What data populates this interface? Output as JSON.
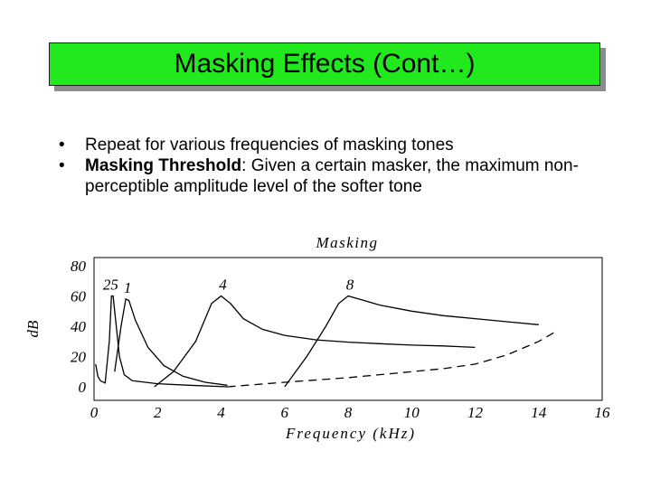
{
  "slide": {
    "title": "Masking Effects (Cont…)",
    "bullet1_dot": "•",
    "bullet1_text": "Repeat for various frequencies of masking tones",
    "bullet2_dot": "•",
    "bullet2_bold": "Masking Threshold",
    "bullet2_text": ": Given a certain masker, the maximum non-perceptible amplitude level of the softer tone"
  },
  "colors": {
    "title_bg": "#22e81e",
    "line": "#000000"
  },
  "chart_data": {
    "type": "line",
    "title": "Masking",
    "xlabel": "Frequency (kHz)",
    "ylabel": "dB",
    "xlim": [
      0,
      16
    ],
    "ylim": [
      0,
      80
    ],
    "xticks": [
      "0",
      "2",
      "4",
      "6",
      "8",
      "10",
      "12",
      "14",
      "16"
    ],
    "yticks": [
      "0",
      "20",
      "40",
      "60",
      "80"
    ],
    "grid": false,
    "series": [
      {
        "name": "25",
        "style": "solid",
        "points": [
          [
            0.05,
            15
          ],
          [
            0.12,
            7
          ],
          [
            0.2,
            4
          ],
          [
            0.35,
            2.5
          ],
          [
            0.48,
            30
          ],
          [
            0.55,
            60
          ],
          [
            0.6,
            60
          ],
          [
            0.7,
            40
          ],
          [
            0.8,
            20
          ],
          [
            0.95,
            8
          ],
          [
            1.2,
            4
          ],
          [
            2,
            2
          ],
          [
            3,
            1
          ],
          [
            4.2,
            0
          ]
        ]
      },
      {
        "name": "1",
        "style": "solid",
        "points": [
          [
            0.65,
            10
          ],
          [
            0.85,
            40
          ],
          [
            1.0,
            58
          ],
          [
            1.1,
            57
          ],
          [
            1.3,
            44
          ],
          [
            1.7,
            26
          ],
          [
            2.2,
            14
          ],
          [
            2.8,
            7
          ],
          [
            3.5,
            3
          ],
          [
            4.2,
            1
          ]
        ]
      },
      {
        "name": "4",
        "style": "solid",
        "points": [
          [
            1.9,
            0
          ],
          [
            2.5,
            10
          ],
          [
            3.2,
            30
          ],
          [
            3.7,
            55
          ],
          [
            4.0,
            60
          ],
          [
            4.3,
            55
          ],
          [
            4.7,
            45
          ],
          [
            5.3,
            38
          ],
          [
            6,
            34
          ],
          [
            7,
            31
          ],
          [
            8,
            29.5
          ],
          [
            9,
            28.5
          ],
          [
            10,
            27.5
          ],
          [
            11,
            27
          ],
          [
            12,
            26
          ]
        ]
      },
      {
        "name": "8",
        "style": "solid",
        "points": [
          [
            6.0,
            0
          ],
          [
            6.7,
            20
          ],
          [
            7.3,
            40
          ],
          [
            7.7,
            55
          ],
          [
            8.0,
            60
          ],
          [
            8.5,
            57
          ],
          [
            9,
            54
          ],
          [
            10,
            50
          ],
          [
            11,
            47
          ],
          [
            12,
            45
          ],
          [
            13,
            43
          ],
          [
            14,
            41
          ]
        ]
      },
      {
        "name": "",
        "style": "dashed",
        "points": [
          [
            4.2,
            0
          ],
          [
            6,
            3
          ],
          [
            8,
            6
          ],
          [
            10,
            10
          ],
          [
            11,
            12
          ],
          [
            12,
            15
          ],
          [
            13,
            21
          ],
          [
            14,
            30
          ],
          [
            14.5,
            36
          ]
        ]
      }
    ],
    "annotations": [
      "25",
      "1",
      "4",
      "8"
    ]
  }
}
